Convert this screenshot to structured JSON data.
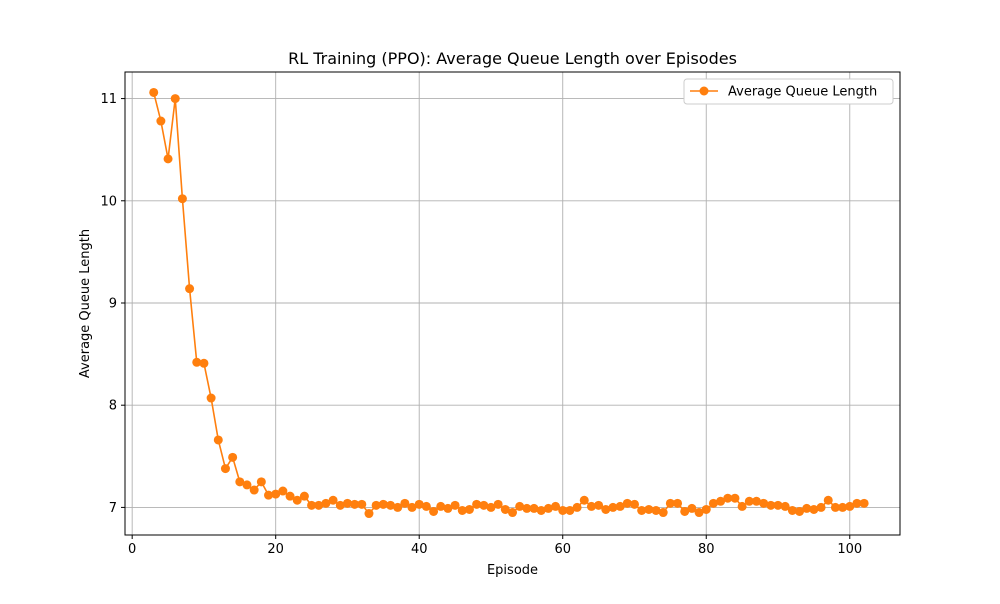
{
  "chart_data": {
    "type": "line",
    "title": "RL Training (PPO): Average Queue Length over Episodes",
    "xlabel": "Episode",
    "ylabel": "Average Queue Length",
    "xlim": [
      -1.0,
      107.0
    ],
    "ylim": [
      6.73,
      11.26
    ],
    "xticks": [
      0,
      20,
      40,
      60,
      80,
      100
    ],
    "yticks": [
      7,
      8,
      9,
      10,
      11
    ],
    "grid": true,
    "legend_position": "top-right",
    "series": [
      {
        "name": "Average Queue Length",
        "color": "#ff7f0e",
        "marker": "circle",
        "x": [
          3,
          4,
          5,
          6,
          7,
          8,
          9,
          10,
          11,
          12,
          13,
          14,
          15,
          16,
          17,
          18,
          19,
          20,
          21,
          22,
          23,
          24,
          25,
          26,
          27,
          28,
          29,
          30,
          31,
          32,
          33,
          34,
          35,
          36,
          37,
          38,
          39,
          40,
          41,
          42,
          43,
          44,
          45,
          46,
          47,
          48,
          49,
          50,
          51,
          52,
          53,
          54,
          55,
          56,
          57,
          58,
          59,
          60,
          61,
          62,
          63,
          64,
          65,
          66,
          67,
          68,
          69,
          70,
          71,
          72,
          73,
          74,
          75,
          76,
          77,
          78,
          79,
          80,
          81,
          82,
          83,
          84,
          85,
          86,
          87,
          88,
          89,
          90,
          91,
          92,
          93,
          94,
          95,
          96,
          97,
          98,
          99,
          100,
          101,
          102
        ],
        "values": [
          11.06,
          10.78,
          10.41,
          11.0,
          10.02,
          9.14,
          8.42,
          8.41,
          8.07,
          7.66,
          7.38,
          7.49,
          7.25,
          7.22,
          7.17,
          7.25,
          7.12,
          7.13,
          7.16,
          7.11,
          7.07,
          7.11,
          7.02,
          7.02,
          7.04,
          7.07,
          7.02,
          7.04,
          7.03,
          7.03,
          6.94,
          7.02,
          7.03,
          7.02,
          7.0,
          7.04,
          7.0,
          7.03,
          7.01,
          6.96,
          7.01,
          6.99,
          7.02,
          6.97,
          6.98,
          7.03,
          7.02,
          7.0,
          7.03,
          6.98,
          6.95,
          7.01,
          6.99,
          6.99,
          6.97,
          6.99,
          7.01,
          6.97,
          6.97,
          7.0,
          7.07,
          7.01,
          7.02,
          6.98,
          7.0,
          7.01,
          7.04,
          7.03,
          6.97,
          6.98,
          6.97,
          6.95,
          7.04,
          7.04,
          6.96,
          6.99,
          6.95,
          6.98,
          7.04,
          7.06,
          7.09,
          7.09,
          7.01,
          7.06,
          7.06,
          7.04,
          7.02,
          7.02,
          7.01,
          6.97,
          6.96,
          6.99,
          6.98,
          7.0,
          7.07,
          7.0,
          7.0,
          7.01,
          7.04,
          7.04
        ]
      }
    ]
  }
}
